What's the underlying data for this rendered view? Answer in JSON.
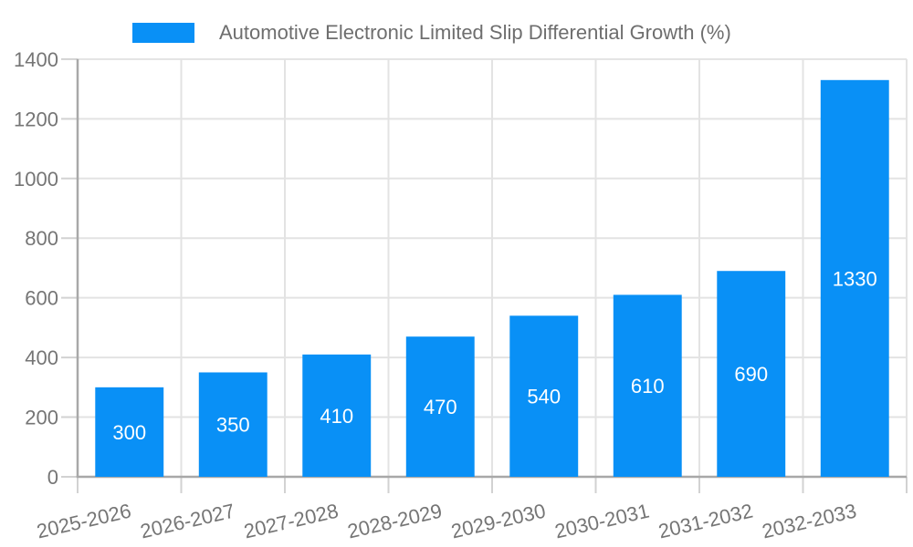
{
  "chart_data": {
    "type": "bar",
    "title": "Automotive Electronic Limited Slip Differential Growth (%)",
    "legend": {
      "position": "top",
      "label": "Automotive Electronic Limited Slip Differential Growth (%)"
    },
    "categories": [
      "2025-2026",
      "2026-2027",
      "2027-2028",
      "2028-2029",
      "2029-2030",
      "2030-2031",
      "2031-2032",
      "2032-2033"
    ],
    "values": [
      300,
      350,
      410,
      470,
      540,
      610,
      690,
      1330
    ],
    "value_labels_shown": true,
    "xlabel": "",
    "ylabel": "",
    "ylim": [
      0,
      1400
    ],
    "yticks": [
      0,
      200,
      400,
      600,
      800,
      1000,
      1200,
      1400
    ],
    "grid": true,
    "x_label_rotation_deg": -13,
    "colors": {
      "bar": "#0990f6",
      "grid": "#e3e3e3",
      "tick": "#d2d2d2",
      "axis": "#a8a8a8",
      "text": "#757575",
      "value_label": "#ffffff",
      "legend_text": "#6e6e6e",
      "background": "#ffffff"
    }
  }
}
